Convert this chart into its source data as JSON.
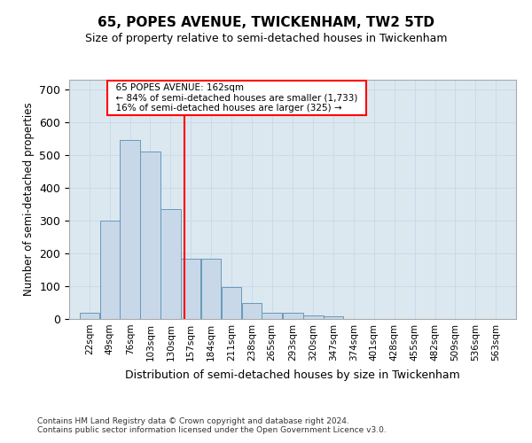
{
  "title": "65, POPES AVENUE, TWICKENHAM, TW2 5TD",
  "subtitle": "Size of property relative to semi-detached houses in Twickenham",
  "xlabel": "Distribution of semi-detached houses by size in Twickenham",
  "ylabel": "Number of semi-detached properties",
  "footer_line1": "Contains HM Land Registry data © Crown copyright and database right 2024.",
  "footer_line2": "Contains public sector information licensed under the Open Government Licence v3.0.",
  "bin_labels": [
    "22sqm",
    "49sqm",
    "76sqm",
    "103sqm",
    "130sqm",
    "157sqm",
    "184sqm",
    "211sqm",
    "238sqm",
    "265sqm",
    "293sqm",
    "320sqm",
    "347sqm",
    "374sqm",
    "401sqm",
    "428sqm",
    "455sqm",
    "482sqm",
    "509sqm",
    "536sqm",
    "563sqm"
  ],
  "bin_edges": [
    22,
    49,
    76,
    103,
    130,
    157,
    184,
    211,
    238,
    265,
    293,
    320,
    347,
    374,
    401,
    428,
    455,
    482,
    509,
    536,
    563
  ],
  "bar_heights": [
    20,
    300,
    545,
    510,
    335,
    185,
    185,
    97,
    50,
    20,
    18,
    10,
    8,
    0,
    0,
    0,
    0,
    0,
    0,
    0
  ],
  "bar_color": "#c8d8e8",
  "bar_edge_color": "#6699bb",
  "grid_color": "#c8d8e8",
  "background_color": "#dce8f0",
  "annotation_text_line1": "65 POPES AVENUE: 162sqm",
  "annotation_text_line2": "← 84% of semi-detached houses are smaller (1,733)",
  "annotation_text_line3": "16% of semi-detached houses are larger (325) →",
  "property_line_x": 162,
  "ylim": [
    0,
    730
  ],
  "yticks": [
    0,
    100,
    200,
    300,
    400,
    500,
    600,
    700
  ]
}
